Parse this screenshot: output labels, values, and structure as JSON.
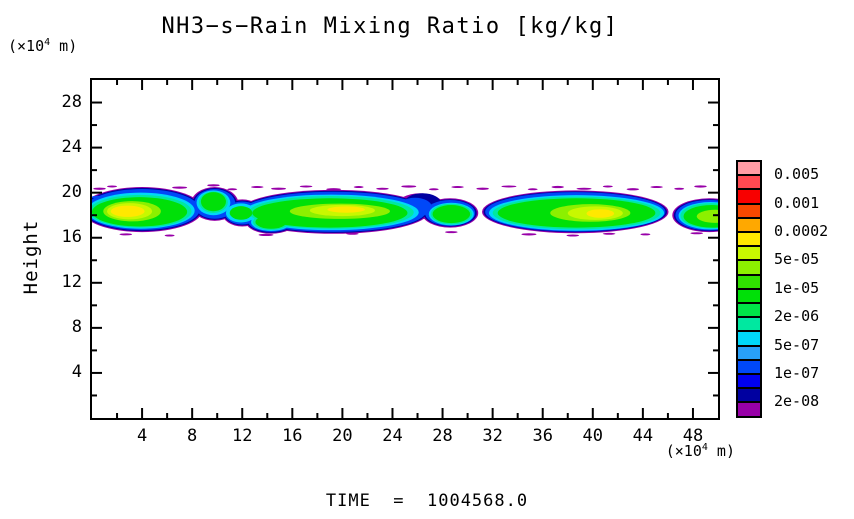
{
  "title": "NH3−s−Rain Mixing Ratio [kg/kg]",
  "time_caption": "TIME  =  1004568.0",
  "axes": {
    "y_axis_title": "Height",
    "y_unit_prefix": "(×10",
    "y_unit_sup": "4",
    "y_unit_suffix": " m)",
    "x_unit_prefix": "(×10",
    "x_unit_sup": "4",
    "x_unit_suffix": " m)"
  },
  "chart_data": {
    "type": "filled_contour",
    "title": "NH3−s−Rain Mixing Ratio [kg/kg]",
    "units": "kg/kg",
    "time": 1004568.0,
    "xlabel": "(×10^4 m)",
    "ylabel": "Height (×10^4 m)",
    "x_range": [
      0,
      50
    ],
    "y_range": [
      0,
      30
    ],
    "x_major_tick_step": 4,
    "x_minor_tick_step": 2,
    "y_major_tick_step": 4,
    "y_minor_tick_step": 2,
    "x_tick_labels": [
      4,
      8,
      12,
      16,
      20,
      24,
      28,
      32,
      36,
      40,
      44,
      48
    ],
    "y_tick_labels": [
      4,
      8,
      12,
      16,
      20,
      24,
      28
    ],
    "description": "Horizontal cloud band of rain NH3 mixing ratio between heights ~16 and ~20.7 (x10^4 m); peak values ~2e-04 kg/kg near x=3, x=20 and x=40.5; purple fringes mark the 2e-08 contour.",
    "levels": [
      2e-08,
      5e-08,
      1e-07,
      2e-07,
      5e-07,
      1e-06,
      2e-06,
      5e-06,
      1e-05,
      2e-05,
      5e-05,
      0.0001,
      0.0002,
      0.0005,
      0.001,
      0.002,
      0.005
    ],
    "colorbar": {
      "colors_top_to_bottom": [
        "#FF9CA4",
        "#FF4A52",
        "#F80000",
        "#F84800",
        "#FFA800",
        "#FFE800",
        "#C8F800",
        "#8CF000",
        "#30E000",
        "#00E008",
        "#00E448",
        "#00E8A0",
        "#00D8F8",
        "#28A0F8",
        "#0048F8",
        "#0000F0",
        "#0000A0",
        "#9800A8"
      ],
      "labels_top_to_bottom": [
        "0.005",
        "0.001",
        "0.0002",
        "5e-05",
        "1e-05",
        "2e-06",
        "5e-07",
        "1e-07",
        "2e-08"
      ]
    },
    "contour_layers": [
      {
        "name": "purple-2e-08",
        "color": "#9800A8",
        "ellipses": [
          [
            4.0,
            18.5,
            4.85,
            2.0
          ],
          [
            9.8,
            19.0,
            1.9,
            1.5
          ],
          [
            12.0,
            18.2,
            1.6,
            1.2
          ],
          [
            14.3,
            17.5,
            2.05,
            1.15
          ],
          [
            19.3,
            18.3,
            7.6,
            1.95
          ],
          [
            26.2,
            18.8,
            1.9,
            1.15
          ],
          [
            28.6,
            18.2,
            2.25,
            1.3
          ],
          [
            38.6,
            18.3,
            7.45,
            1.9
          ],
          [
            49.3,
            18.0,
            2.95,
            1.5
          ],
          [
            0.6,
            20.35,
            0.5,
            0.1
          ],
          [
            1.6,
            20.55,
            0.4,
            0.09
          ],
          [
            2.8,
            20.3,
            0.5,
            0.09
          ],
          [
            7.0,
            20.45,
            0.6,
            0.1
          ],
          [
            9.7,
            20.65,
            0.5,
            0.1
          ],
          [
            11.2,
            20.3,
            0.4,
            0.09
          ],
          [
            13.2,
            20.5,
            0.5,
            0.09
          ],
          [
            14.9,
            20.35,
            0.6,
            0.1
          ],
          [
            17.1,
            20.55,
            0.5,
            0.09
          ],
          [
            19.3,
            20.3,
            0.6,
            0.1
          ],
          [
            21.3,
            20.5,
            0.4,
            0.09
          ],
          [
            23.2,
            20.35,
            0.5,
            0.09
          ],
          [
            25.3,
            20.55,
            0.6,
            0.1
          ],
          [
            27.3,
            20.3,
            0.4,
            0.09
          ],
          [
            29.2,
            20.5,
            0.5,
            0.09
          ],
          [
            31.2,
            20.35,
            0.5,
            0.1
          ],
          [
            33.3,
            20.55,
            0.6,
            0.09
          ],
          [
            35.2,
            20.3,
            0.4,
            0.09
          ],
          [
            37.2,
            20.5,
            0.5,
            0.1
          ],
          [
            39.3,
            20.35,
            0.6,
            0.09
          ],
          [
            41.2,
            20.55,
            0.4,
            0.09
          ],
          [
            43.2,
            20.3,
            0.5,
            0.1
          ],
          [
            45.1,
            20.5,
            0.5,
            0.09
          ],
          [
            46.9,
            20.35,
            0.4,
            0.09
          ],
          [
            48.6,
            20.55,
            0.5,
            0.1
          ],
          [
            2.7,
            16.3,
            0.5,
            0.09
          ],
          [
            6.2,
            16.2,
            0.4,
            0.09
          ],
          [
            13.9,
            16.25,
            0.6,
            0.1
          ],
          [
            20.8,
            16.35,
            0.5,
            0.09
          ],
          [
            28.7,
            16.5,
            0.5,
            0.09
          ],
          [
            34.9,
            16.3,
            0.6,
            0.1
          ],
          [
            38.4,
            16.2,
            0.5,
            0.09
          ],
          [
            41.3,
            16.35,
            0.5,
            0.09
          ],
          [
            44.2,
            16.3,
            0.4,
            0.09
          ],
          [
            48.3,
            16.4,
            0.5,
            0.09
          ]
        ]
      },
      {
        "name": "navy-1e-07",
        "color": "#0000A0",
        "ellipses": [
          [
            4.0,
            18.5,
            4.72,
            1.92
          ],
          [
            9.8,
            19.0,
            1.78,
            1.41
          ],
          [
            12.0,
            18.2,
            1.5,
            1.11
          ],
          [
            14.3,
            17.5,
            1.95,
            1.07
          ],
          [
            19.3,
            18.3,
            7.48,
            1.87
          ],
          [
            26.4,
            19.0,
            1.5,
            0.95
          ],
          [
            28.6,
            18.2,
            2.13,
            1.22
          ],
          [
            38.6,
            18.3,
            7.33,
            1.82
          ],
          [
            49.3,
            18.0,
            2.83,
            1.42
          ]
        ]
      },
      {
        "name": "blue-2e-07",
        "color": "#0048F8",
        "ellipses": [
          [
            4.0,
            18.5,
            4.6,
            1.82
          ],
          [
            9.8,
            19.0,
            1.65,
            1.32
          ],
          [
            12.0,
            18.2,
            1.4,
            1.02
          ],
          [
            14.3,
            17.5,
            1.85,
            0.98
          ],
          [
            19.3,
            18.3,
            7.35,
            1.78
          ],
          [
            25.8,
            18.7,
            1.35,
            0.85
          ],
          [
            28.6,
            18.2,
            2.0,
            1.15
          ],
          [
            38.6,
            18.3,
            7.2,
            1.75
          ],
          [
            49.3,
            18.0,
            2.7,
            1.35
          ],
          [
            0.45,
            19.6,
            0.5,
            0.12
          ],
          [
            0.5,
            19.15,
            0.55,
            0.1
          ]
        ]
      },
      {
        "name": "cyan-5e-07",
        "color": "#00D8F8",
        "ellipses": [
          [
            3.9,
            18.4,
            4.3,
            1.6
          ],
          [
            9.7,
            19.1,
            1.35,
            1.1
          ],
          [
            11.9,
            18.2,
            1.2,
            0.85
          ],
          [
            14.3,
            17.4,
            1.6,
            0.8
          ],
          [
            19.1,
            18.25,
            7.0,
            1.58
          ],
          [
            28.7,
            18.1,
            1.8,
            1.0
          ],
          [
            38.7,
            18.2,
            7.0,
            1.58
          ],
          [
            49.4,
            17.95,
            2.55,
            1.22
          ]
        ]
      },
      {
        "name": "turquoise-2e-06",
        "color": "#00E8A0",
        "ellipses": [
          [
            3.85,
            18.35,
            4.1,
            1.45
          ],
          [
            9.7,
            19.15,
            1.15,
            0.95
          ],
          [
            14.3,
            17.4,
            1.45,
            0.7
          ],
          [
            19.1,
            18.25,
            6.6,
            1.45
          ],
          [
            28.7,
            18.1,
            1.65,
            0.92
          ],
          [
            38.7,
            18.2,
            6.7,
            1.45
          ],
          [
            49.4,
            17.95,
            2.4,
            1.12
          ]
        ]
      },
      {
        "name": "green-1e-05",
        "color": "#00E008",
        "ellipses": [
          [
            3.8,
            18.3,
            3.8,
            1.3
          ],
          [
            9.7,
            19.2,
            1.0,
            0.85
          ],
          [
            11.9,
            18.2,
            0.9,
            0.6
          ],
          [
            14.3,
            17.4,
            1.25,
            0.6
          ],
          [
            19.0,
            18.2,
            6.2,
            1.3
          ],
          [
            28.7,
            18.1,
            1.5,
            0.8
          ],
          [
            38.7,
            18.2,
            6.3,
            1.3
          ],
          [
            49.5,
            17.9,
            2.25,
            1.0
          ]
        ]
      },
      {
        "name": "chartreuse-5e-05",
        "color": "#8CF000",
        "ellipses": [
          [
            3.2,
            18.35,
            2.3,
            0.9
          ],
          [
            19.8,
            18.35,
            4.0,
            0.68
          ],
          [
            39.8,
            18.2,
            3.2,
            0.78
          ],
          [
            49.8,
            17.9,
            1.5,
            0.58
          ]
        ]
      },
      {
        "name": "yellowgreen-1e-04",
        "color": "#C8F800",
        "ellipses": [
          [
            3.0,
            18.35,
            1.8,
            0.72
          ],
          [
            20.0,
            18.42,
            2.6,
            0.5
          ],
          [
            40.2,
            18.18,
            2.2,
            0.6
          ]
        ]
      },
      {
        "name": "yellow-2e-04",
        "color": "#FFE800",
        "ellipses": [
          [
            2.85,
            18.35,
            1.35,
            0.5
          ],
          [
            20.3,
            18.5,
            1.5,
            0.28
          ],
          [
            40.6,
            18.15,
            1.1,
            0.38
          ]
        ]
      }
    ]
  }
}
